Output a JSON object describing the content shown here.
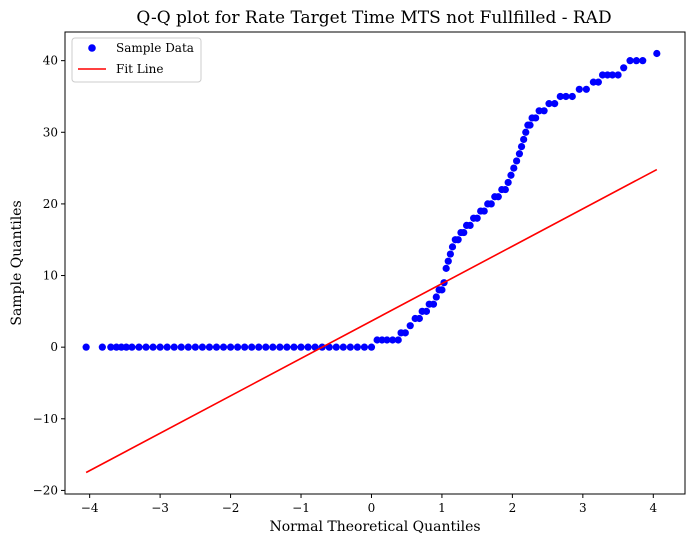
{
  "chart_data": {
    "type": "scatter",
    "title": "Q-Q plot for Rate Target Time MTS not Fullfilled - RAD",
    "xlabel": "Normal Theoretical Quantiles",
    "ylabel": "Sample Quantiles",
    "xlim": [
      -4.35,
      4.45
    ],
    "ylim": [
      -20.5,
      44
    ],
    "xticks": [
      -4,
      -3,
      -2,
      -1,
      0,
      1,
      2,
      3,
      4
    ],
    "yticks": [
      -20,
      -10,
      0,
      10,
      20,
      30,
      40
    ],
    "xtick_labels": [
      "−4",
      "−3",
      "−2",
      "−1",
      "0",
      "1",
      "2",
      "3",
      "4"
    ],
    "ytick_labels": [
      "−20",
      "−10",
      "0",
      "10",
      "20",
      "30",
      "40"
    ],
    "grid": false,
    "legend_position": "top-left",
    "series": [
      {
        "name": "Sample Data",
        "kind": "scatter",
        "color": "#0000ff",
        "points": [
          [
            -4.05,
            0
          ],
          [
            -3.82,
            0
          ],
          [
            -3.7,
            0
          ],
          [
            -3.62,
            0
          ],
          [
            -3.55,
            0
          ],
          [
            -3.48,
            0
          ],
          [
            -3.4,
            0
          ],
          [
            -3.3,
            0
          ],
          [
            -3.2,
            0
          ],
          [
            -3.1,
            0
          ],
          [
            -3.0,
            0
          ],
          [
            -2.9,
            0
          ],
          [
            -2.8,
            0
          ],
          [
            -2.7,
            0
          ],
          [
            -2.6,
            0
          ],
          [
            -2.5,
            0
          ],
          [
            -2.4,
            0
          ],
          [
            -2.3,
            0
          ],
          [
            -2.2,
            0
          ],
          [
            -2.1,
            0
          ],
          [
            -2.0,
            0
          ],
          [
            -1.9,
            0
          ],
          [
            -1.8,
            0
          ],
          [
            -1.7,
            0
          ],
          [
            -1.6,
            0
          ],
          [
            -1.5,
            0
          ],
          [
            -1.4,
            0
          ],
          [
            -1.3,
            0
          ],
          [
            -1.2,
            0
          ],
          [
            -1.1,
            0
          ],
          [
            -1.0,
            0
          ],
          [
            -0.9,
            0
          ],
          [
            -0.8,
            0
          ],
          [
            -0.7,
            0
          ],
          [
            -0.6,
            0
          ],
          [
            -0.5,
            0
          ],
          [
            -0.4,
            0
          ],
          [
            -0.3,
            0
          ],
          [
            -0.2,
            0
          ],
          [
            -0.1,
            0
          ],
          [
            0.0,
            0
          ],
          [
            0.08,
            1
          ],
          [
            0.15,
            1
          ],
          [
            0.22,
            1
          ],
          [
            0.3,
            1
          ],
          [
            0.38,
            1
          ],
          [
            0.42,
            2
          ],
          [
            0.48,
            2
          ],
          [
            0.55,
            3
          ],
          [
            0.62,
            4
          ],
          [
            0.68,
            4
          ],
          [
            0.72,
            5
          ],
          [
            0.78,
            5
          ],
          [
            0.82,
            6
          ],
          [
            0.88,
            6
          ],
          [
            0.92,
            7
          ],
          [
            0.96,
            8
          ],
          [
            1.0,
            8
          ],
          [
            1.03,
            9
          ],
          [
            1.06,
            11
          ],
          [
            1.09,
            12
          ],
          [
            1.12,
            13
          ],
          [
            1.15,
            14
          ],
          [
            1.19,
            15
          ],
          [
            1.23,
            15
          ],
          [
            1.27,
            16
          ],
          [
            1.31,
            16
          ],
          [
            1.35,
            17
          ],
          [
            1.4,
            17
          ],
          [
            1.45,
            18
          ],
          [
            1.5,
            18
          ],
          [
            1.55,
            19
          ],
          [
            1.6,
            19
          ],
          [
            1.65,
            20
          ],
          [
            1.7,
            20
          ],
          [
            1.75,
            21
          ],
          [
            1.8,
            21
          ],
          [
            1.85,
            22
          ],
          [
            1.9,
            22
          ],
          [
            1.94,
            23
          ],
          [
            1.98,
            24
          ],
          [
            2.02,
            25
          ],
          [
            2.06,
            26
          ],
          [
            2.1,
            27
          ],
          [
            2.13,
            28
          ],
          [
            2.16,
            29
          ],
          [
            2.19,
            30
          ],
          [
            2.22,
            31
          ],
          [
            2.25,
            31
          ],
          [
            2.28,
            32
          ],
          [
            2.33,
            32
          ],
          [
            2.38,
            33
          ],
          [
            2.45,
            33
          ],
          [
            2.52,
            34
          ],
          [
            2.6,
            34
          ],
          [
            2.68,
            35
          ],
          [
            2.76,
            35
          ],
          [
            2.85,
            35
          ],
          [
            2.95,
            36
          ],
          [
            3.05,
            36
          ],
          [
            3.15,
            37
          ],
          [
            3.22,
            37
          ],
          [
            3.28,
            38
          ],
          [
            3.35,
            38
          ],
          [
            3.42,
            38
          ],
          [
            3.5,
            38
          ],
          [
            3.58,
            39
          ],
          [
            3.67,
            40
          ],
          [
            3.76,
            40
          ],
          [
            3.85,
            40
          ],
          [
            4.05,
            41
          ]
        ]
      },
      {
        "name": "Fit Line",
        "kind": "line",
        "color": "#ff0000",
        "x": [
          -4.05,
          4.05
        ],
        "y": [
          -17.5,
          24.8
        ]
      }
    ]
  }
}
